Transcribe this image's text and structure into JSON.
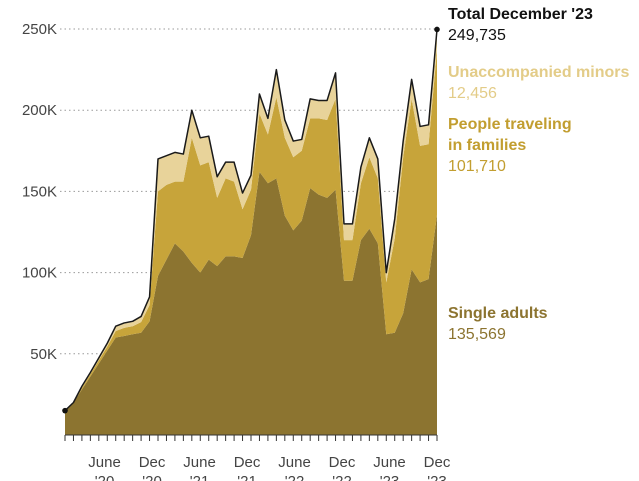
{
  "chart_data": {
    "type": "area",
    "stacked": true,
    "x_start": "2020-01",
    "x_end": "2023-12",
    "x_tick_labels": [
      {
        "date": "2020-06",
        "line1": "June",
        "line2": "'20"
      },
      {
        "date": "2020-12",
        "line1": "Dec",
        "line2": "'20"
      },
      {
        "date": "2021-06",
        "line1": "June",
        "line2": "'21"
      },
      {
        "date": "2021-12",
        "line1": "Dec",
        "line2": "'21"
      },
      {
        "date": "2022-06",
        "line1": "June",
        "line2": "'22"
      },
      {
        "date": "2022-12",
        "line1": "Dec",
        "line2": "'22"
      },
      {
        "date": "2023-06",
        "line1": "June",
        "line2": "'23"
      },
      {
        "date": "2023-12",
        "line1": "Dec",
        "line2": "'23"
      }
    ],
    "y_ticks": [
      {
        "value": 50000,
        "label": "50K"
      },
      {
        "value": 100000,
        "label": "100K"
      },
      {
        "value": 150000,
        "label": "150K"
      },
      {
        "value": 200000,
        "label": "200K"
      },
      {
        "value": 250000,
        "label": "250K"
      }
    ],
    "ylim": [
      0,
      250000
    ],
    "grid": true,
    "legend_position": "right",
    "series": [
      {
        "name": "Single adults",
        "color": "#8c7430",
        "values": [
          15000,
          20000,
          28000,
          36000,
          44000,
          52000,
          60000,
          61000,
          62000,
          63000,
          70000,
          98000,
          108000,
          118000,
          113000,
          106000,
          100000,
          108000,
          104000,
          110000,
          110000,
          109000,
          123000,
          162000,
          155000,
          158000,
          135000,
          126000,
          132000,
          152000,
          148000,
          146000,
          151000,
          95000,
          95000,
          120000,
          127000,
          118000,
          62000,
          63000,
          75000,
          102000,
          94000,
          96000,
          135569
        ]
      },
      {
        "name": "People traveling\nin families",
        "color": "#c7a43a",
        "values": [
          0,
          0,
          1000,
          1500,
          2000,
          2500,
          4000,
          5000,
          5000,
          6500,
          10000,
          52000,
          46000,
          38000,
          43000,
          77000,
          66000,
          60000,
          42000,
          48000,
          46000,
          30000,
          28000,
          36000,
          30000,
          50000,
          48000,
          45000,
          43000,
          43000,
          47000,
          48000,
          56000,
          25000,
          25000,
          35000,
          44000,
          40000,
          32000,
          58000,
          96000,
          105000,
          84000,
          83000,
          101710
        ]
      },
      {
        "name": "Unaccompanied minors",
        "color": "#e8d39a",
        "values": [
          0,
          0,
          1000,
          1000,
          1500,
          2000,
          3000,
          3000,
          3000,
          3500,
          5000,
          20000,
          18000,
          18000,
          17000,
          17000,
          17000,
          16000,
          13000,
          10000,
          12000,
          10000,
          9000,
          12000,
          10000,
          17000,
          11000,
          10000,
          7000,
          12000,
          11000,
          12000,
          16000,
          10000,
          10000,
          10000,
          12000,
          12000,
          6000,
          12000,
          10000,
          12000,
          12000,
          12000,
          12456
        ]
      }
    ],
    "total": [
      15000,
      20000,
      30000,
      38500,
      47500,
      56500,
      67000,
      69000,
      70000,
      73000,
      85000,
      170000,
      172000,
      174000,
      173000,
      200000,
      183000,
      184000,
      159000,
      168000,
      168000,
      149000,
      160000,
      210000,
      195000,
      225000,
      194000,
      181000,
      182000,
      207000,
      206000,
      206000,
      223000,
      130000,
      130000,
      165000,
      183000,
      170000,
      100000,
      133000,
      181000,
      219000,
      190000,
      191000,
      249735
    ],
    "annotation": {
      "label": "Total December '23",
      "value": "249,735"
    },
    "legend": [
      {
        "name": "Unaccompanied minors",
        "value": "12,456",
        "color": "#e8d39a"
      },
      {
        "name": "People traveling\nin families",
        "value": "101,710",
        "color": "#c7a43a"
      },
      {
        "name": "Single adults",
        "value": "135,569",
        "color": "#8c7430"
      }
    ]
  }
}
